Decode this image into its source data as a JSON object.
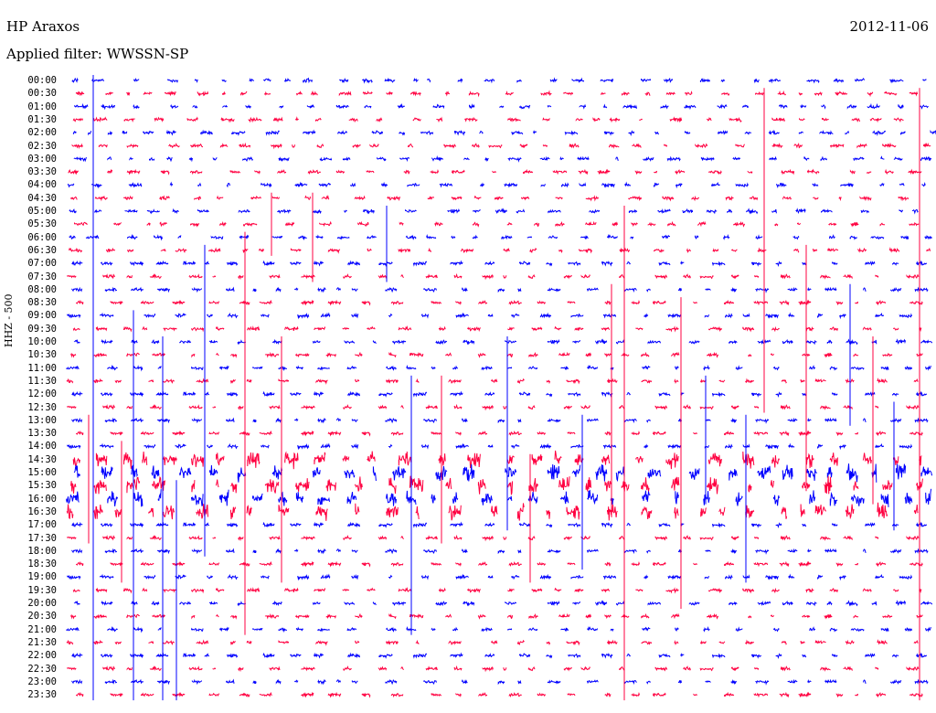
{
  "header": {
    "station": "HP Araxos",
    "filter": "Applied filter: WWSSN-SP",
    "date": "2012-11-06",
    "channel": "HHZ - 500"
  },
  "chart_data": {
    "type": "line",
    "title": "HP Araxos",
    "subtitle": "Applied filter: WWSSN-SP",
    "ylabel": "HHZ - 500",
    "row_labels": [
      "00:00",
      "00:30",
      "01:00",
      "01:30",
      "02:00",
      "02:30",
      "03:00",
      "03:30",
      "04:00",
      "04:30",
      "05:00",
      "05:30",
      "06:00",
      "06:30",
      "07:00",
      "07:30",
      "08:00",
      "08:30",
      "09:00",
      "09:30",
      "10:00",
      "10:30",
      "11:00",
      "11:30",
      "12:00",
      "12:30",
      "13:00",
      "13:30",
      "14:00",
      "14:30",
      "15:00",
      "15:30",
      "16:00",
      "16:30",
      "17:00",
      "17:30",
      "18:00",
      "18:30",
      "19:00",
      "19:30",
      "20:00",
      "20:30",
      "21:00",
      "21:30",
      "22:00",
      "22:30",
      "23:00",
      "23:30"
    ],
    "series_colors": [
      "#0000ff",
      "#ff0040"
    ],
    "grid": false,
    "legend": "none"
  }
}
